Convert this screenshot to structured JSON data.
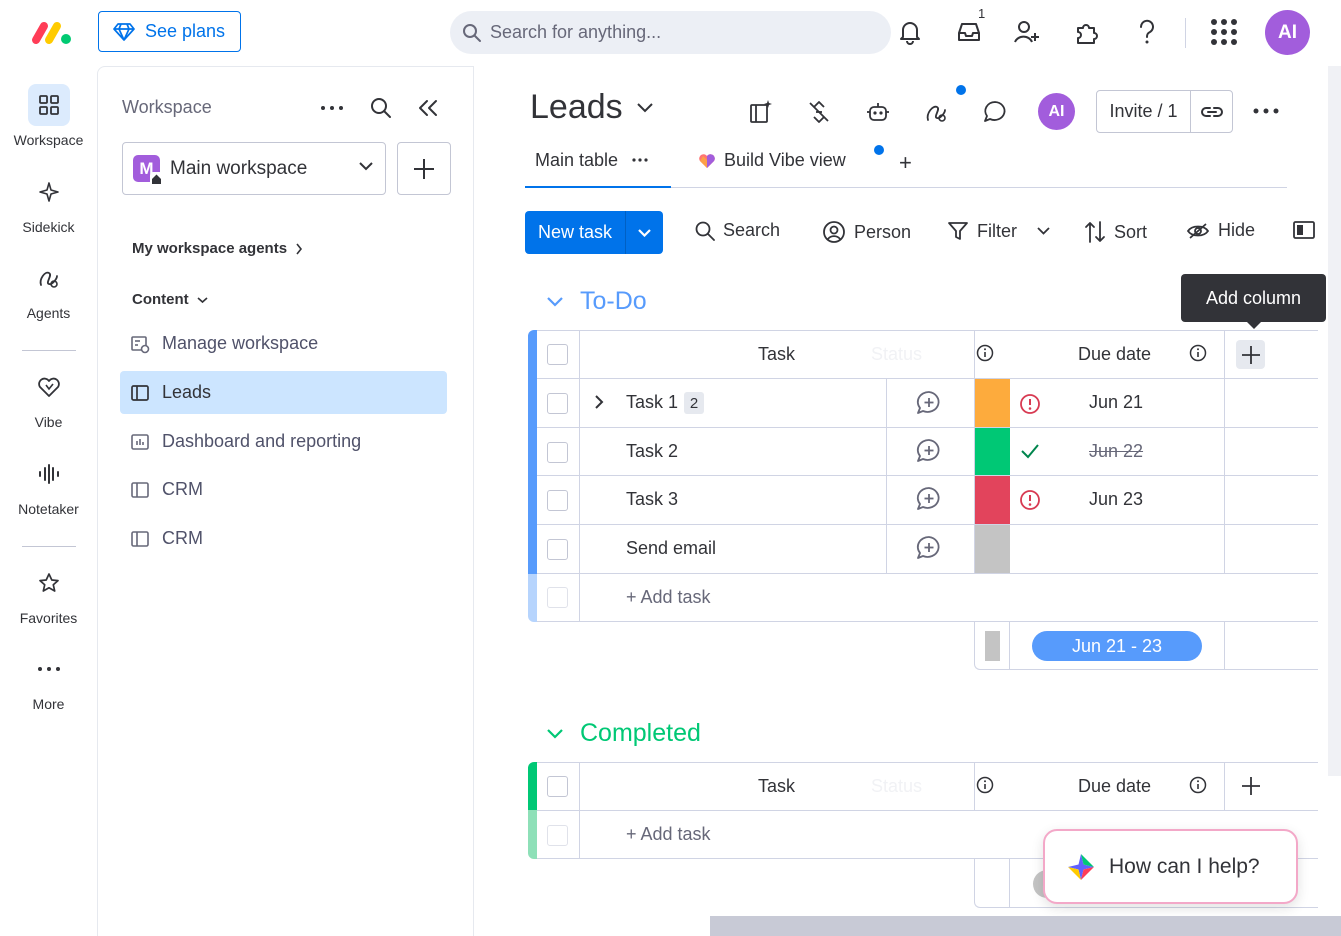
{
  "topbar": {
    "see_plans_label": "See plans",
    "search_placeholder": "Search for anything...",
    "inbox_count": "1",
    "avatar_initials": "AI"
  },
  "rail": {
    "items": [
      {
        "label": "Workspace",
        "icon": "grid-icon"
      },
      {
        "label": "Sidekick",
        "icon": "sparkle-icon"
      },
      {
        "label": "Agents",
        "icon": "agent-icon"
      },
      {
        "label": "Vibe",
        "icon": "heart-icon"
      },
      {
        "label": "Notetaker",
        "icon": "waveform-icon"
      },
      {
        "label": "Favorites",
        "icon": "star-icon"
      },
      {
        "label": "More",
        "icon": "dots-icon"
      }
    ]
  },
  "panel": {
    "title": "Workspace",
    "workspace_badge": "M",
    "workspace_name": "Main workspace",
    "agents_heading": "My workspace agents",
    "content_heading": "Content",
    "items": [
      {
        "label": "Manage workspace",
        "icon": "manage-workspace-icon"
      },
      {
        "label": "Leads",
        "icon": "board-icon"
      },
      {
        "label": "Dashboard and reporting",
        "icon": "dashboard-icon"
      },
      {
        "label": "CRM",
        "icon": "board-icon"
      },
      {
        "label": "CRM",
        "icon": "board-icon"
      }
    ]
  },
  "board": {
    "title": "Leads",
    "avatar_initials": "AI",
    "invite_label": "Invite / 1",
    "tabs": [
      {
        "label": "Main table"
      },
      {
        "label": "Build Vibe view"
      }
    ],
    "add_tab": "+",
    "toolbar": {
      "new_task": "New task",
      "search": "Search",
      "person": "Person",
      "filter": "Filter",
      "sort": "Sort",
      "hide": "Hide"
    },
    "tooltip": "Add column",
    "groups": [
      {
        "title": "To-Do",
        "color": "#579bfc",
        "columns": {
          "task": "Task",
          "status": "Status",
          "due": "Due date"
        },
        "rows": [
          {
            "task": "Task 1",
            "subitems": "2",
            "status_color": "#fdab3d",
            "due": "Jun 21",
            "due_state": "overdue",
            "strike": false
          },
          {
            "task": "Task 2",
            "subitems": "",
            "status_color": "#00c875",
            "due": "Jun 22",
            "due_state": "done",
            "strike": true
          },
          {
            "task": "Task 3",
            "subitems": "",
            "status_color": "#e2445c",
            "due": "Jun 23",
            "due_state": "overdue",
            "strike": false
          },
          {
            "task": "Send email",
            "subitems": "",
            "status_color": "#c4c4c4",
            "due": "",
            "due_state": "none",
            "strike": false
          }
        ],
        "add_task": "+ Add task",
        "summary_range": "Jun 21 - 23"
      },
      {
        "title": "Completed",
        "color": "#00c875",
        "columns": {
          "task": "Task",
          "status": "Status",
          "due": "Due date"
        },
        "rows": [],
        "add_task": "+ Add task"
      }
    ]
  },
  "assistant": {
    "prompt": "How can I help?"
  }
}
